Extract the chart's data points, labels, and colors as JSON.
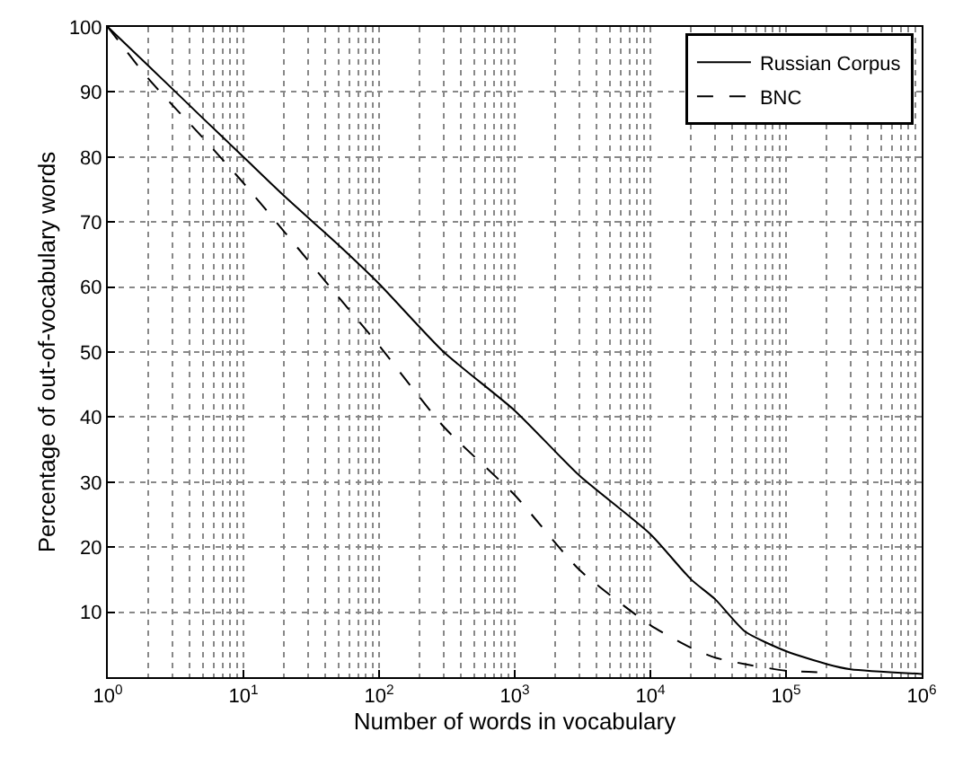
{
  "chart_data": {
    "type": "line",
    "xlabel": "Number of words in vocabulary",
    "ylabel": "Percentage of out-of-vocabulary words",
    "log": "x",
    "x": [
      1,
      2,
      5,
      10,
      20,
      50,
      100,
      300,
      1000,
      3000,
      10000,
      20000,
      30000,
      50000,
      100000,
      200000,
      300000,
      1000000
    ],
    "series": [
      {
        "name": "Russian Corpus",
        "color": "#000000",
        "line_style": "solid",
        "values": [
          100,
          94,
          86,
          80,
          74,
          66.5,
          60.5,
          50,
          41,
          31,
          22,
          15,
          12,
          7,
          4,
          2,
          1.2,
          0.5
        ]
      },
      {
        "name": "BNC",
        "color": "#000000",
        "line_style": "dashed",
        "values": [
          100,
          92,
          83,
          76,
          68.5,
          58.5,
          51,
          38.5,
          28,
          16.5,
          8,
          4.5,
          3,
          2,
          1,
          0.7,
          null,
          null
        ]
      }
    ],
    "xlim": [
      1,
      1000000
    ],
    "ylim": [
      0,
      100
    ],
    "xticks": [
      {
        "value": 1,
        "label": "10$^{0}$"
      },
      {
        "value": 10,
        "label": "10$^{1}$"
      },
      {
        "value": 100,
        "label": "10$^{2}$"
      },
      {
        "value": 1000,
        "label": "10$^{3}$"
      },
      {
        "value": 10000,
        "label": "10$^{4}$"
      },
      {
        "value": 100000,
        "label": "10$^{5}$"
      },
      {
        "value": 1000000,
        "label": "10$^{6}$"
      }
    ],
    "yticks": [
      10,
      20,
      30,
      40,
      50,
      60,
      70,
      80,
      90,
      100
    ],
    "grid": true,
    "legend": "top right",
    "marker": "none"
  }
}
